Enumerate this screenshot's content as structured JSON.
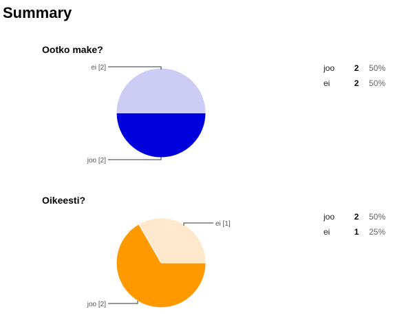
{
  "page": {
    "title": "Summary"
  },
  "questions": [
    {
      "title": "Ootko make?",
      "legend": [
        {
          "name": "joo",
          "count": "2",
          "percent": "50%"
        },
        {
          "name": "ei",
          "count": "2",
          "percent": "50%"
        }
      ]
    },
    {
      "title": "Oikeesti?",
      "legend": [
        {
          "name": "joo",
          "count": "2",
          "percent": "50%"
        },
        {
          "name": "ei",
          "count": "1",
          "percent": "25%"
        }
      ]
    }
  ],
  "chart_data": [
    {
      "type": "pie",
      "title": "Ootko make?",
      "slices": [
        {
          "label": "ei [2]",
          "value": 2,
          "color": "#ccccf5"
        },
        {
          "label": "joo [2]",
          "value": 2,
          "color": "#0000dd"
        }
      ]
    },
    {
      "type": "pie",
      "title": "Oikeesti?",
      "slices": [
        {
          "label": "ei [1]",
          "value": 1,
          "color": "#ffe9cc"
        },
        {
          "label": "joo [2]",
          "value": 2,
          "color": "#ff9900"
        }
      ]
    }
  ]
}
